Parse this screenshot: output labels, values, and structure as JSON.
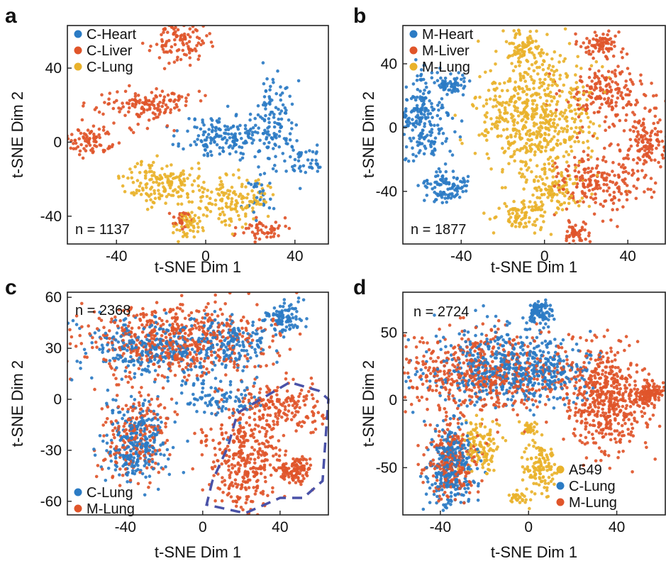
{
  "colors": {
    "blue": "#2b7bc4",
    "orange": "#e0552a",
    "yellow": "#e9b22b",
    "dash": "#4a52a8"
  },
  "chart_data": [
    {
      "panel": "a",
      "type": "scatter",
      "n_label": "n = 1137",
      "xlabel": "t-SNE Dim 1",
      "ylabel": "t-SNE Dim 2",
      "xlim": [
        -62,
        55
      ],
      "ylim": [
        -55,
        63
      ],
      "xticks": [
        -40,
        0,
        40
      ],
      "yticks": [
        -40,
        0,
        40
      ],
      "legend_position": "top-left",
      "series": [
        {
          "name": "C-Heart",
          "color": "#2b7bc4",
          "count": 360,
          "seed": 11,
          "clusters": [
            {
              "cx": 8,
              "cy": 3,
              "sx": 9,
              "sy": 6,
              "w": 0.45
            },
            {
              "cx": 30,
              "cy": 12,
              "sx": 5,
              "sy": 12,
              "w": 0.35
            },
            {
              "cx": 45,
              "cy": -10,
              "sx": 4,
              "sy": 5,
              "w": 0.12
            },
            {
              "cx": 25,
              "cy": -30,
              "sx": 4,
              "sy": 6,
              "w": 0.08
            }
          ]
        },
        {
          "name": "C-Liver",
          "color": "#e0552a",
          "count": 420,
          "seed": 23,
          "clusters": [
            {
              "cx": -12,
              "cy": 55,
              "sx": 6,
              "sy": 6,
              "w": 0.28
            },
            {
              "cx": -27,
              "cy": 20,
              "sx": 11,
              "sy": 5,
              "w": 0.34
            },
            {
              "cx": -53,
              "cy": 1,
              "sx": 6,
              "sy": 4,
              "w": 0.2
            },
            {
              "cx": 25,
              "cy": -48,
              "sx": 6,
              "sy": 3,
              "w": 0.12
            },
            {
              "cx": -12,
              "cy": -41,
              "sx": 2.5,
              "sy": 3,
              "w": 0.06
            }
          ]
        },
        {
          "name": "C-Lung",
          "color": "#e9b22b",
          "count": 357,
          "seed": 37,
          "clusters": [
            {
              "cx": -20,
              "cy": -22,
              "sx": 8,
              "sy": 6,
              "w": 0.45
            },
            {
              "cx": 12,
              "cy": -30,
              "sx": 8,
              "sy": 7,
              "w": 0.4
            },
            {
              "cx": -8,
              "cy": -45,
              "sx": 3,
              "sy": 3,
              "w": 0.15
            }
          ]
        }
      ]
    },
    {
      "panel": "b",
      "type": "scatter",
      "n_label": "n = 1877",
      "xlabel": "t-SNE Dim 1",
      "ylabel": "t-SNE Dim 2",
      "xlim": [
        -68,
        58
      ],
      "ylim": [
        -73,
        64
      ],
      "xticks": [
        -40,
        0,
        40
      ],
      "yticks": [
        -40,
        0,
        40
      ],
      "legend_position": "top-left",
      "series": [
        {
          "name": "M-Heart",
          "color": "#2b7bc4",
          "count": 380,
          "seed": 41,
          "clusters": [
            {
              "cx": -58,
              "cy": 5,
              "sx": 7,
              "sy": 14,
              "w": 0.6
            },
            {
              "cx": -47,
              "cy": -38,
              "sx": 6,
              "sy": 5,
              "w": 0.25
            },
            {
              "cx": -45,
              "cy": 28,
              "sx": 4,
              "sy": 4,
              "w": 0.15
            }
          ]
        },
        {
          "name": "M-Liver",
          "color": "#e0552a",
          "count": 640,
          "seed": 53,
          "clusters": [
            {
              "cx": 30,
              "cy": 20,
              "sx": 11,
              "sy": 11,
              "w": 0.3
            },
            {
              "cx": 28,
              "cy": -35,
              "sx": 12,
              "sy": 9,
              "w": 0.3
            },
            {
              "cx": 50,
              "cy": -10,
              "sx": 6,
              "sy": 11,
              "w": 0.2
            },
            {
              "cx": 27,
              "cy": 53,
              "sx": 5,
              "sy": 4,
              "w": 0.12
            },
            {
              "cx": 15,
              "cy": -66,
              "sx": 3,
              "sy": 4,
              "w": 0.08
            }
          ]
        },
        {
          "name": "M-Lung",
          "color": "#e9b22b",
          "count": 857,
          "seed": 67,
          "clusters": [
            {
              "cx": -5,
              "cy": 5,
              "sx": 13,
              "sy": 21,
              "w": 0.72
            },
            {
              "cx": -10,
              "cy": 50,
              "sx": 4,
              "sy": 5,
              "w": 0.08
            },
            {
              "cx": -10,
              "cy": -55,
              "sx": 7,
              "sy": 5,
              "w": 0.1
            },
            {
              "cx": 5,
              "cy": -40,
              "sx": 6,
              "sy": 6,
              "w": 0.1
            }
          ]
        }
      ]
    },
    {
      "panel": "c",
      "type": "scatter",
      "n_label": "n = 2368",
      "xlabel": "t-SNE Dim 1",
      "ylabel": "t-SNE Dim 2",
      "xlim": [
        -70,
        65
      ],
      "ylim": [
        -68,
        63
      ],
      "xticks": [
        -40,
        0,
        40
      ],
      "yticks": [
        60,
        30,
        0,
        -30,
        -60
      ],
      "legend_position": "bottom-left",
      "series": [
        {
          "name": "C-Lung",
          "color": "#2b7bc4",
          "count": 950,
          "seed": 71,
          "clusters": [
            {
              "cx": -25,
              "cy": 30,
              "sx": 20,
              "sy": 9,
              "w": 0.35
            },
            {
              "cx": 15,
              "cy": 32,
              "sx": 10,
              "sy": 8,
              "w": 0.15
            },
            {
              "cx": 42,
              "cy": 48,
              "sx": 5,
              "sy": 5,
              "w": 0.1
            },
            {
              "cx": -35,
              "cy": -25,
              "sx": 8,
              "sy": 12,
              "w": 0.3
            },
            {
              "cx": 10,
              "cy": 0,
              "sx": 10,
              "sy": 7,
              "w": 0.1
            }
          ]
        },
        {
          "name": "M-Lung",
          "color": "#e0552a",
          "count": 1418,
          "seed": 83,
          "clusters": [
            {
              "cx": -15,
              "cy": 35,
              "sx": 26,
              "sy": 11,
              "w": 0.4
            },
            {
              "cx": 22,
              "cy": -35,
              "sx": 10,
              "sy": 15,
              "w": 0.25
            },
            {
              "cx": 48,
              "cy": -42,
              "sx": 4,
              "sy": 4,
              "w": 0.08
            },
            {
              "cx": 40,
              "cy": -5,
              "sx": 12,
              "sy": 8,
              "w": 0.12
            },
            {
              "cx": -35,
              "cy": -20,
              "sx": 9,
              "sy": 14,
              "w": 0.15
            }
          ]
        }
      ],
      "outline": [
        [
          5,
          -48
        ],
        [
          2,
          -62
        ],
        [
          22,
          -67
        ],
        [
          40,
          -58
        ],
        [
          52,
          -58
        ],
        [
          62,
          -48
        ],
        [
          65,
          0
        ],
        [
          60,
          5
        ],
        [
          45,
          10
        ],
        [
          30,
          0
        ],
        [
          18,
          -8
        ],
        [
          13,
          -28
        ],
        [
          5,
          -48
        ]
      ]
    },
    {
      "panel": "d",
      "type": "scatter",
      "n_label": "n = 2724",
      "xlabel": "t-SNE Dim 1",
      "ylabel": "t-SNE Dim 2",
      "xlim": [
        -57,
        62
      ],
      "ylim": [
        -85,
        80
      ],
      "xticks": [
        -40,
        0,
        40
      ],
      "yticks": [
        50,
        0,
        -50
      ],
      "legend_position": "bottom-right",
      "series": [
        {
          "name": "A549",
          "color": "#e9b22b",
          "count": 300,
          "seed": 91,
          "clusters": [
            {
              "cx": -22,
              "cy": -35,
              "sx": 4,
              "sy": 10,
              "w": 0.4
            },
            {
              "cx": 5,
              "cy": -50,
              "sx": 4,
              "sy": 10,
              "w": 0.4
            },
            {
              "cx": 0,
              "cy": -20,
              "sx": 2,
              "sy": 3,
              "w": 0.1
            },
            {
              "cx": -5,
              "cy": -72,
              "sx": 2,
              "sy": 3,
              "w": 0.1
            }
          ]
        },
        {
          "name": "C-Lung",
          "color": "#2b7bc4",
          "count": 1000,
          "seed": 103,
          "clusters": [
            {
              "cx": -15,
              "cy": 25,
              "sx": 18,
              "sy": 14,
              "w": 0.4
            },
            {
              "cx": 5,
              "cy": 65,
              "sx": 3,
              "sy": 5,
              "w": 0.1
            },
            {
              "cx": -35,
              "cy": -50,
              "sx": 5,
              "sy": 15,
              "w": 0.3
            },
            {
              "cx": 5,
              "cy": 20,
              "sx": 10,
              "sy": 12,
              "w": 0.2
            }
          ]
        },
        {
          "name": "M-Lung",
          "color": "#e0552a",
          "count": 1424,
          "seed": 109,
          "clusters": [
            {
              "cx": -20,
              "cy": 20,
              "sx": 20,
              "sy": 15,
              "w": 0.4
            },
            {
              "cx": 35,
              "cy": 0,
              "sx": 10,
              "sy": 20,
              "w": 0.35
            },
            {
              "cx": 55,
              "cy": 5,
              "sx": 3,
              "sy": 4,
              "w": 0.08
            },
            {
              "cx": -35,
              "cy": -45,
              "sx": 6,
              "sy": 15,
              "w": 0.17
            }
          ]
        }
      ]
    }
  ]
}
